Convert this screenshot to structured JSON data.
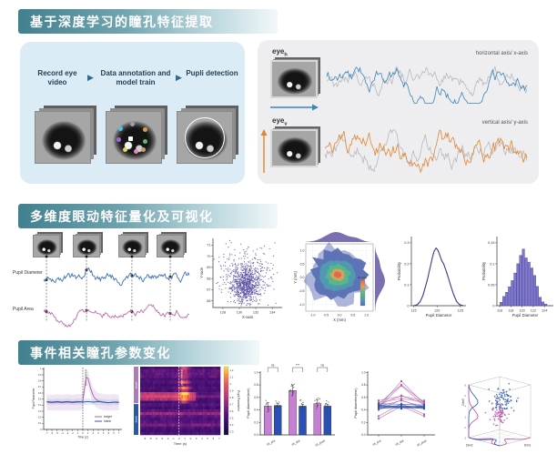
{
  "page": {
    "bg": "#ffffff"
  },
  "sections": {
    "s1": {
      "title": "基于深度学习的瞳孔特征提取"
    },
    "s2": {
      "title": "多维度眼动特征量化及可视化"
    },
    "s3": {
      "title": "事件相关瞳孔参数变化"
    }
  },
  "pipeline": {
    "arrow": "▶",
    "steps": [
      {
        "label": "Record eye video"
      },
      {
        "label": "Data annotation and model train"
      },
      {
        "label": "Pupli detection"
      }
    ],
    "annotation_dot_colors": [
      "#4ec3e0",
      "#9aa3ab",
      "#e09a4a",
      "#9b6bd0",
      "#ffffff",
      "#66b86a",
      "#e8d85a",
      "#e88ab8",
      "#c9a06a"
    ]
  },
  "eye_panel": {
    "eye_label": "eye",
    "h_sub": "h",
    "v_sub": "v",
    "h_annotation": "horizontal axis/ x-axis",
    "v_annotation": "vertical axis/ y-axis",
    "h_arrow_color": "#3a87b8",
    "v_arrow_color": "#e0862f"
  },
  "pupil_plot": {
    "diameter_label": "Pupil Diameter",
    "area_label": "Pupil Area"
  },
  "chart_data": [
    {
      "id": "trace_h",
      "type": "line",
      "label": "horizontal axis/ x-axis",
      "n": 170,
      "series": [
        {
          "name": "raw",
          "color": "#b9b9bd",
          "seed": 21,
          "damp": 0.93,
          "step": 0.55
        },
        {
          "name": "pupil-x",
          "color": "#3b86b8",
          "seed": 7,
          "damp": 0.95,
          "step": 0.5
        }
      ]
    },
    {
      "id": "trace_v",
      "type": "line",
      "label": "vertical axis/ y-axis",
      "n": 170,
      "series": [
        {
          "name": "raw",
          "color": "#b9b9bd",
          "seed": 40,
          "damp": 0.9,
          "step": 0.62
        },
        {
          "name": "pupil-y",
          "color": "#e0862f",
          "seed": 15,
          "damp": 0.9,
          "step": 0.65
        }
      ]
    },
    {
      "id": "pupil_traces",
      "type": "line",
      "n": 150,
      "events_frac": [
        0.019,
        0.294,
        0.606,
        0.869
      ],
      "series": [
        {
          "name": "Pupil Diameter",
          "color": "#3f6fb4",
          "seed": 5
        },
        {
          "name": "Pupil Area",
          "color": "#c06ab2",
          "seed": 9
        }
      ]
    },
    {
      "id": "scatter_xy",
      "type": "scatter",
      "xlabel": "X-axis",
      "ylabel": "Y-axis",
      "xlim": [
        126.8,
        135.2
      ],
      "ylim": [
        65.4,
        71.6
      ],
      "xticks": [
        "128",
        "130",
        "132",
        "134"
      ],
      "yticks": [
        "66",
        "67",
        "68",
        "69",
        "70",
        "71"
      ],
      "color": "#5a52a5",
      "seed": 3,
      "clusters": [
        {
          "n": 650,
          "cx": 130.8,
          "cy": 67.4,
          "sx": 0.85,
          "sy": 0.75
        },
        {
          "n": 350,
          "cx": 130.9,
          "cy": 68.3,
          "sx": 1.7,
          "sy": 1.25
        }
      ]
    },
    {
      "id": "density2d",
      "type": "heatmap",
      "xlabel": "X (mm)",
      "ylabel": "Y (mm)",
      "xticks": [
        "-1.0",
        "-0.5",
        "0.0",
        "0.5",
        "1.0"
      ],
      "yticks": [
        "-1.0",
        "-0.5",
        "0.0",
        "0.5",
        "1.0"
      ],
      "xlim": [
        -1.25,
        1.25
      ],
      "ylim": [
        -1.25,
        1.25
      ],
      "legend_title": "Density",
      "palette": [
        "#5a6fb4",
        "#4f9bb0",
        "#57b78a",
        "#d8a35c",
        "#e0654d"
      ],
      "marginal_color": "#6a5fa8"
    },
    {
      "id": "kde",
      "type": "line",
      "xlabel": "Pupil Diameter",
      "ylabel": "Probability",
      "xticks": [
        "115",
        "120",
        "125"
      ],
      "yticks": [
        "0",
        "0.1",
        "0.2",
        "0.3"
      ],
      "xlim": [
        114.5,
        126.2
      ],
      "ylim": [
        0,
        0.33
      ],
      "color": "#3d3a92",
      "points": [
        [
          115,
          0
        ],
        [
          115.8,
          0.005
        ],
        [
          116.4,
          0.02
        ],
        [
          117,
          0.05
        ],
        [
          117.5,
          0.09
        ],
        [
          118,
          0.13
        ],
        [
          118.5,
          0.18
        ],
        [
          119,
          0.23
        ],
        [
          119.4,
          0.262
        ],
        [
          119.8,
          0.275
        ],
        [
          120.2,
          0.265
        ],
        [
          120.6,
          0.24
        ],
        [
          121,
          0.215
        ],
        [
          121.4,
          0.2
        ],
        [
          121.9,
          0.17
        ],
        [
          122.4,
          0.135
        ],
        [
          123,
          0.09
        ],
        [
          123.6,
          0.05
        ],
        [
          124.2,
          0.02
        ],
        [
          124.8,
          0.006
        ],
        [
          125.6,
          0
        ]
      ]
    },
    {
      "id": "hist",
      "type": "bar",
      "xlabel": "Pupil Diameter",
      "ylabel": "Probability",
      "xticks": [
        "116",
        "118",
        "120",
        "122",
        "124"
      ],
      "yticks": [
        "0",
        "0.05",
        "0.1",
        "0.15"
      ],
      "xlim": [
        115.5,
        125.6
      ],
      "ylim": [
        0,
        0.165
      ],
      "fill": "#8078cc",
      "edge": "#3d3a92",
      "bin_width": 0.5,
      "centers": [
        116.25,
        116.75,
        117.25,
        117.75,
        118.25,
        118.75,
        119.25,
        119.75,
        120.25,
        120.75,
        121.25,
        121.75,
        122.25,
        122.75,
        123.25,
        123.75,
        124.25
      ],
      "values": [
        0.008,
        0.022,
        0.032,
        0.045,
        0.06,
        0.078,
        0.1,
        0.12,
        0.135,
        0.114,
        0.104,
        0.09,
        0.072,
        0.046,
        0.02,
        0.009,
        0.004
      ]
    },
    {
      "id": "erp",
      "type": "line",
      "xlabel": "Time (s)",
      "ylabel": "Pupil Parameter",
      "xticks": [
        "-7",
        "-6",
        "-5",
        "-4",
        "-3",
        "-2",
        "-1",
        "0",
        "1",
        "2",
        "3",
        "4",
        "5",
        "6",
        "7"
      ],
      "yticks": [
        "0",
        "0.1",
        "0.2",
        "0.3",
        "0.4",
        "0.5",
        "0.6",
        "0.7",
        "0.8",
        "0.9",
        "1"
      ],
      "xlim": [
        -7.6,
        7.6
      ],
      "ylim": [
        0,
        1.02
      ],
      "vline": 0,
      "vline_label": "stimulus onset",
      "legend": [
        {
          "label": "target",
          "color": "#b05fa8"
        },
        {
          "label": "blank",
          "color": "#2c56a8"
        }
      ],
      "band": {
        "target": 0.13,
        "blank": 0.05
      },
      "target": [
        [
          -7,
          0.45
        ],
        [
          -6,
          0.44
        ],
        [
          -5,
          0.45
        ],
        [
          -4,
          0.44
        ],
        [
          -3,
          0.45
        ],
        [
          -2,
          0.44
        ],
        [
          -1,
          0.45
        ],
        [
          -0.5,
          0.45
        ],
        [
          0,
          0.47
        ],
        [
          0.25,
          0.62
        ],
        [
          0.5,
          0.78
        ],
        [
          0.75,
          0.86
        ],
        [
          1,
          0.84
        ],
        [
          1.25,
          0.76
        ],
        [
          1.5,
          0.68
        ],
        [
          2,
          0.56
        ],
        [
          2.5,
          0.5
        ],
        [
          3,
          0.47
        ],
        [
          4,
          0.45
        ],
        [
          5,
          0.44
        ],
        [
          6,
          0.45
        ],
        [
          7,
          0.44
        ]
      ],
      "blank": [
        [
          -7,
          0.46
        ],
        [
          -6,
          0.45
        ],
        [
          -5,
          0.46
        ],
        [
          -4,
          0.45
        ],
        [
          -3,
          0.46
        ],
        [
          -2,
          0.45
        ],
        [
          -1,
          0.46
        ],
        [
          0,
          0.45
        ],
        [
          1,
          0.46
        ],
        [
          2,
          0.45
        ],
        [
          3,
          0.46
        ],
        [
          4,
          0.45
        ],
        [
          5,
          0.44
        ],
        [
          6,
          0.45
        ],
        [
          7,
          0.45
        ]
      ]
    },
    {
      "id": "heatmap",
      "type": "heatmap",
      "xlabel": "Time (s)",
      "seed": 13,
      "rows": 24,
      "cols": 56,
      "xlim": [
        -6.8,
        7.2
      ],
      "xticks": [
        "-6",
        "-5",
        "-4",
        "-3",
        "-2",
        "-1",
        "0",
        "1",
        "2",
        "3",
        "4",
        "5",
        "6",
        "7"
      ],
      "vline": 0,
      "vline_label": "stimulus onset",
      "groups": [
        {
          "label": "target",
          "color": "#b07ab5",
          "rows": 13
        },
        {
          "label": "blank",
          "color": "#2c56a8",
          "rows": 11
        }
      ],
      "colorbar": {
        "label": "Pupil Parameter",
        "ticks": [
          "1.2",
          "1.1",
          "1",
          "0.9",
          "0.8",
          "0.7",
          "0.6",
          "0.5",
          "0.4",
          "0.3"
        ]
      }
    },
    {
      "id": "bars",
      "type": "bar",
      "categories": [
        "sti_pre",
        "sti_dur",
        "sti_post"
      ],
      "ylabel": "Pupil diameter(mm)",
      "yticks": [
        "0.0",
        "0.2",
        "0.4",
        "0.6",
        "0.8",
        "1.0"
      ],
      "ylim": [
        0,
        1.02
      ],
      "sig": [
        "ns",
        "***",
        "ns"
      ],
      "seed": 8,
      "series": [
        {
          "name": "target",
          "color": "#c77fd4",
          "values": [
            0.46,
            0.71,
            0.5
          ],
          "err": [
            0.06,
            0.09,
            0.06
          ]
        },
        {
          "name": "blank",
          "color": "#2b50b5",
          "values": [
            0.47,
            0.46,
            0.46
          ],
          "err": [
            0.03,
            0.03,
            0.03
          ]
        }
      ]
    },
    {
      "id": "paired",
      "type": "line",
      "categories": [
        "sti_pre",
        "sti_dur",
        "sti_post"
      ],
      "ylabel": "Pupil diameter(mm)",
      "yticks": [
        "0.0",
        "0.2",
        "0.4",
        "0.6",
        "0.8",
        "1.0"
      ],
      "ylim": [
        0,
        1.02
      ],
      "groups": [
        {
          "color": "#b05fa8",
          "lines": [
            [
              0.45,
              0.86,
              0.5
            ],
            [
              0.5,
              0.8,
              0.52
            ],
            [
              0.44,
              0.79,
              0.47
            ],
            [
              0.55,
              0.62,
              0.55
            ],
            [
              0.4,
              0.56,
              0.42
            ],
            [
              0.3,
              0.5,
              0.33
            ],
            [
              0.48,
              0.63,
              0.5
            ],
            [
              0.26,
              0.46,
              0.3
            ],
            [
              0.52,
              0.58,
              0.53
            ],
            [
              0.46,
              0.55,
              0.45
            ]
          ]
        },
        {
          "color": "#2c56a8",
          "lines": [
            [
              0.45,
              0.47,
              0.44
            ],
            [
              0.48,
              0.45,
              0.46
            ],
            [
              0.43,
              0.44,
              0.43
            ],
            [
              0.5,
              0.49,
              0.48
            ],
            [
              0.46,
              0.42,
              0.45
            ],
            [
              0.44,
              0.46,
              0.44
            ],
            [
              0.47,
              0.44,
              0.46
            ],
            [
              0.42,
              0.45,
              0.42
            ]
          ]
        }
      ]
    },
    {
      "id": "scatter3d",
      "type": "scatter",
      "axes": {
        "x": "Dim1",
        "y": "Dim2",
        "z": "Dim3"
      },
      "ticks": [
        "8",
        "6",
        "4",
        "2",
        "0",
        "-2"
      ],
      "clusters": [
        {
          "color": "#2c56a8",
          "seed": 2,
          "n": 85,
          "cx": 0.55,
          "cy": 0.45,
          "cz": 0.72,
          "s": 0.12
        },
        {
          "color": "#b44fa6",
          "seed": 4,
          "n": 60,
          "cx": 0.5,
          "cy": 0.52,
          "cz": 0.45,
          "s": 0.1
        }
      ]
    }
  ]
}
